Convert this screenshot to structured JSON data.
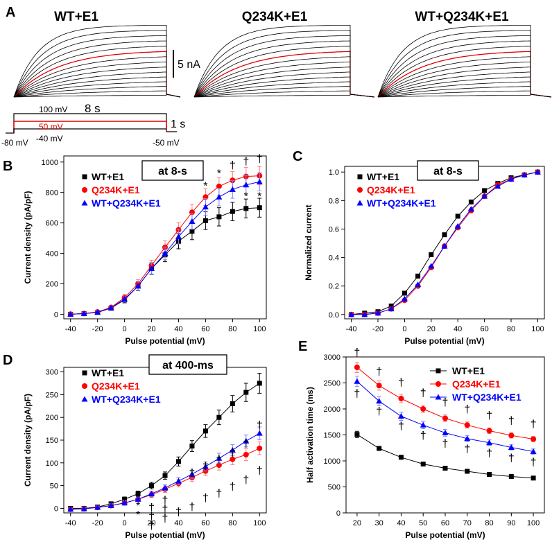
{
  "panel_letters": {
    "a": "A",
    "b": "B",
    "c": "C",
    "d": "D",
    "e": "E"
  },
  "colors": {
    "wt": "#000000",
    "q": "#ff0000",
    "mix": "#0000ff",
    "errQ": "#ff8080",
    "errMix": "#8080ff"
  },
  "traces": {
    "titles": [
      "WT+E1",
      "Q234K+E1",
      "WT+Q234K+E1"
    ],
    "scale_label": "5 nA",
    "protocol": {
      "v_top": "100 mV",
      "duration": "8 s",
      "v_red": "50 mV",
      "v_bottom": "-40 mV",
      "v_hold": "-80 mV",
      "v_tail": "-50 mV",
      "tail_duration": "1 s"
    }
  },
  "chart_data": [
    {
      "id": "B",
      "type": "line",
      "title": "at 8-s",
      "xlabel": "Pulse potential (mV)",
      "ylabel": "Current density (pA/pF)",
      "xlim": [
        -45,
        105
      ],
      "ylim": [
        -30,
        1040
      ],
      "xticks": [
        -40,
        -20,
        0,
        20,
        40,
        60,
        80,
        100
      ],
      "yticks": [
        0,
        200,
        400,
        600,
        800,
        1000
      ],
      "legend": [
        "WT+E1",
        "Q234K+E1",
        "WT+Q234K+E1"
      ],
      "x": [
        -40,
        -30,
        -20,
        -10,
        0,
        10,
        20,
        30,
        40,
        50,
        60,
        70,
        80,
        90,
        100
      ],
      "series": [
        {
          "name": "WT+E1",
          "values": [
            0,
            4,
            12,
            40,
            95,
            185,
            300,
            390,
            480,
            545,
            615,
            640,
            675,
            695,
            700
          ],
          "err": [
            8,
            8,
            10,
            14,
            20,
            30,
            38,
            45,
            50,
            55,
            58,
            60,
            60,
            62,
            62
          ]
        },
        {
          "name": "Q234K+E1",
          "values": [
            0,
            5,
            15,
            45,
            110,
            200,
            320,
            440,
            555,
            670,
            770,
            840,
            880,
            905,
            910
          ],
          "err": [
            8,
            8,
            10,
            14,
            20,
            28,
            35,
            42,
            48,
            52,
            55,
            58,
            58,
            60,
            60
          ]
        },
        {
          "name": "WT+Q234K+E1",
          "values": [
            0,
            4,
            13,
            42,
            100,
            185,
            300,
            400,
            510,
            610,
            705,
            770,
            820,
            850,
            870
          ],
          "err": [
            8,
            8,
            10,
            14,
            20,
            28,
            35,
            42,
            48,
            52,
            55,
            58,
            58,
            60,
            60
          ]
        }
      ],
      "annotations": [
        {
          "x": 60,
          "y": 820,
          "text": "*"
        },
        {
          "x": 70,
          "y": 900,
          "text": "*"
        },
        {
          "x": 90,
          "y": 750,
          "text": "*"
        },
        {
          "x": 100,
          "y": 750,
          "text": "*"
        },
        {
          "x": 80,
          "y": 955,
          "text": "†"
        },
        {
          "x": 90,
          "y": 980,
          "text": "†"
        },
        {
          "x": 100,
          "y": 1000,
          "text": "†"
        }
      ]
    },
    {
      "id": "C",
      "type": "line",
      "title": "at 8-s",
      "xlabel": "Pulse potential (mV)",
      "ylabel": "Normalized current",
      "xlim": [
        -45,
        105
      ],
      "ylim": [
        -0.03,
        1.04
      ],
      "xticks": [
        -40,
        -20,
        0,
        20,
        40,
        60,
        80,
        100
      ],
      "yticks": [
        0.0,
        0.2,
        0.4,
        0.6,
        0.8,
        1.0
      ],
      "legend": [
        "WT+E1",
        "Q234K+E1",
        "WT+Q234K+E1"
      ],
      "x": [
        -40,
        -30,
        -20,
        -10,
        0,
        10,
        20,
        30,
        40,
        50,
        60,
        70,
        80,
        90,
        100
      ],
      "series": [
        {
          "name": "WT+E1",
          "values": [
            0.0,
            0.01,
            0.02,
            0.06,
            0.15,
            0.27,
            0.42,
            0.56,
            0.69,
            0.79,
            0.87,
            0.92,
            0.96,
            0.98,
            1.0
          ]
        },
        {
          "name": "Q234K+E1",
          "values": [
            0.0,
            0.0,
            0.01,
            0.04,
            0.1,
            0.2,
            0.33,
            0.48,
            0.61,
            0.73,
            0.83,
            0.91,
            0.95,
            0.98,
            1.0
          ]
        },
        {
          "name": "WT+Q234K+E1",
          "values": [
            0.0,
            0.0,
            0.01,
            0.04,
            0.11,
            0.21,
            0.34,
            0.48,
            0.62,
            0.74,
            0.83,
            0.9,
            0.95,
            0.98,
            1.0
          ]
        }
      ]
    },
    {
      "id": "D",
      "type": "line",
      "title": "at 400-ms",
      "xlabel": "Pulse potential (mV)",
      "ylabel": "Current density (pA/pF)",
      "xlim": [
        -45,
        105
      ],
      "ylim": [
        -10,
        310
      ],
      "xticks": [
        -40,
        -20,
        0,
        20,
        40,
        60,
        80,
        100
      ],
      "yticks": [
        0,
        50,
        100,
        150,
        200,
        250,
        300
      ],
      "legend": [
        "WT+E1",
        "Q234K+E1",
        "WT+Q234K+E1"
      ],
      "x": [
        -40,
        -30,
        -20,
        -10,
        0,
        10,
        20,
        30,
        40,
        50,
        60,
        70,
        80,
        90,
        100
      ],
      "series": [
        {
          "name": "WT+E1",
          "values": [
            0,
            0,
            3,
            10,
            20,
            32,
            50,
            72,
            103,
            137,
            170,
            200,
            230,
            255,
            275
          ],
          "err": [
            2,
            2,
            3,
            4,
            5,
            6,
            7,
            8,
            10,
            12,
            14,
            16,
            18,
            20,
            22
          ]
        },
        {
          "name": "Q234K+E1",
          "values": [
            -2,
            -1,
            2,
            6,
            12,
            20,
            30,
            42,
            55,
            68,
            82,
            95,
            108,
            118,
            132
          ],
          "err": [
            2,
            2,
            3,
            4,
            5,
            5,
            6,
            7,
            8,
            9,
            10,
            11,
            12,
            13,
            14
          ]
        },
        {
          "name": "WT+Q234K+E1",
          "values": [
            -2,
            -1,
            2,
            6,
            12,
            20,
            32,
            45,
            60,
            75,
            92,
            110,
            128,
            148,
            165
          ],
          "err": [
            2,
            2,
            3,
            4,
            5,
            5,
            6,
            7,
            8,
            9,
            10,
            11,
            12,
            13,
            14
          ]
        }
      ],
      "annotations": [
        {
          "x": 10,
          "y": -2,
          "text": "*"
        },
        {
          "x": 10,
          "y": -22,
          "text": "*"
        },
        {
          "x": 20,
          "y": -6,
          "text": "†"
        },
        {
          "x": 20,
          "y": -26,
          "text": "†"
        },
        {
          "x": 20,
          "y": -46,
          "text": "†"
        },
        {
          "x": 30,
          "y": 10,
          "text": "†"
        },
        {
          "x": 30,
          "y": -10,
          "text": "†"
        },
        {
          "x": 30,
          "y": -30,
          "text": "†"
        },
        {
          "x": 40,
          "y": -15,
          "text": "†"
        },
        {
          "x": 50,
          "y": 70,
          "text": "†"
        },
        {
          "x": 50,
          "y": -5,
          "text": "†"
        },
        {
          "x": 60,
          "y": 85,
          "text": "†"
        },
        {
          "x": 60,
          "y": 15,
          "text": "†"
        },
        {
          "x": 70,
          "y": 100,
          "text": "†"
        },
        {
          "x": 70,
          "y": 25,
          "text": "†"
        },
        {
          "x": 80,
          "y": 115,
          "text": "†"
        },
        {
          "x": 80,
          "y": 40,
          "text": "†"
        },
        {
          "x": 90,
          "y": 135,
          "text": "†"
        },
        {
          "x": 90,
          "y": 55,
          "text": "†"
        },
        {
          "x": 100,
          "y": 175,
          "text": "†"
        },
        {
          "x": 100,
          "y": 75,
          "text": "†"
        }
      ]
    },
    {
      "id": "E",
      "type": "line",
      "title": "",
      "xlabel": "Pulse potential (mV)",
      "ylabel": "Half activation time (ms)",
      "xlim": [
        15,
        105
      ],
      "ylim": [
        0,
        3000
      ],
      "xticks": [
        20,
        30,
        40,
        50,
        60,
        70,
        80,
        90,
        100
      ],
      "yticks": [
        0,
        500,
        1000,
        1500,
        2000,
        2500,
        3000
      ],
      "legend": [
        "WT+E1",
        "Q234K+E1",
        "WT+Q234K+E1"
      ],
      "x": [
        20,
        30,
        40,
        50,
        60,
        70,
        80,
        90,
        100
      ],
      "series": [
        {
          "name": "WT+E1",
          "values": [
            1510,
            1240,
            1070,
            940,
            860,
            800,
            740,
            700,
            670
          ],
          "err": [
            60,
            40,
            35,
            30,
            25,
            22,
            20,
            18,
            18
          ]
        },
        {
          "name": "Q234K+E1",
          "values": [
            2800,
            2450,
            2200,
            2000,
            1820,
            1690,
            1580,
            1490,
            1420
          ],
          "err": [
            100,
            90,
            80,
            70,
            65,
            60,
            55,
            50,
            50
          ]
        },
        {
          "name": "WT+Q234K+E1",
          "values": [
            2530,
            2150,
            1860,
            1690,
            1540,
            1430,
            1350,
            1260,
            1180
          ],
          "err": [
            100,
            90,
            80,
            70,
            65,
            60,
            55,
            50,
            50
          ]
        }
      ],
      "annotations": [
        {
          "x": 20,
          "y": 3020,
          "text": "†"
        },
        {
          "x": 20,
          "y": 2230,
          "text": "†"
        },
        {
          "x": 30,
          "y": 2650,
          "text": "†"
        },
        {
          "x": 30,
          "y": 1890,
          "text": "†"
        },
        {
          "x": 40,
          "y": 2440,
          "text": "†"
        },
        {
          "x": 40,
          "y": 1600,
          "text": "†"
        },
        {
          "x": 50,
          "y": 2240,
          "text": "†"
        },
        {
          "x": 50,
          "y": 1420,
          "text": "†"
        },
        {
          "x": 60,
          "y": 2060,
          "text": "†"
        },
        {
          "x": 60,
          "y": 1270,
          "text": "†"
        },
        {
          "x": 70,
          "y": 1930,
          "text": "†"
        },
        {
          "x": 70,
          "y": 1160,
          "text": "†"
        },
        {
          "x": 80,
          "y": 1810,
          "text": "†"
        },
        {
          "x": 80,
          "y": 1080,
          "text": "†"
        },
        {
          "x": 90,
          "y": 1710,
          "text": "†"
        },
        {
          "x": 90,
          "y": 990,
          "text": "†"
        },
        {
          "x": 100,
          "y": 1640,
          "text": "†"
        },
        {
          "x": 100,
          "y": 910,
          "text": "†"
        }
      ]
    }
  ]
}
